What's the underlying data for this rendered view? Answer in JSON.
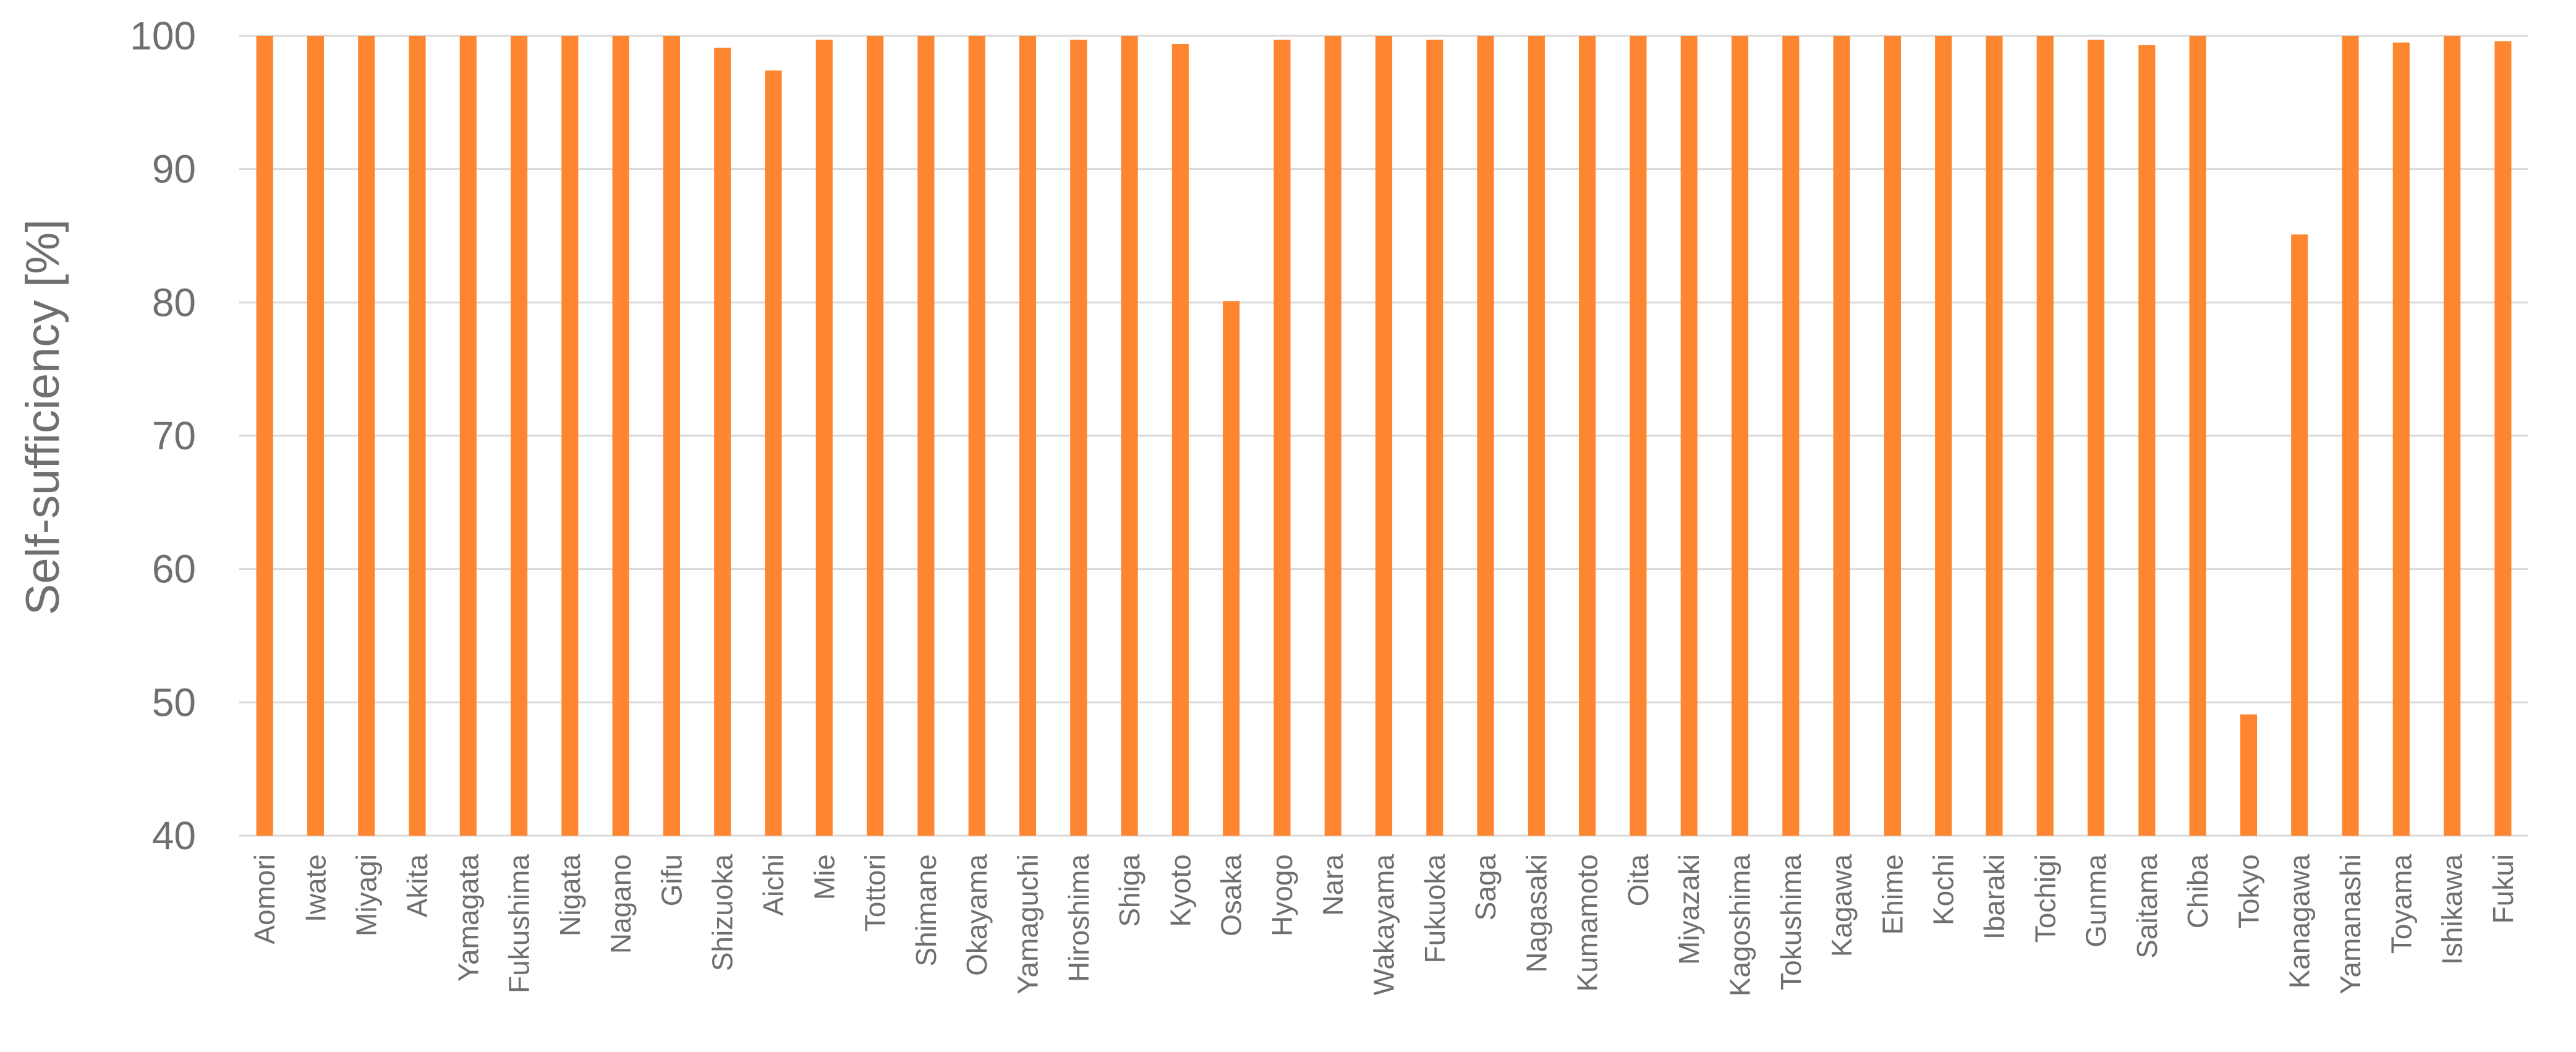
{
  "chart_data": {
    "type": "bar",
    "title": "",
    "xlabel": "",
    "ylabel": "Self-sufficiency [%]",
    "ylim": [
      40,
      100
    ],
    "yticks": [
      40,
      50,
      60,
      70,
      80,
      90,
      100
    ],
    "grid": true,
    "legend": "none",
    "bar_color": "#FF8630",
    "categories": [
      "Aomori",
      "Iwate",
      "Miyagi",
      "Akita",
      "Yamagata",
      "Fukushima",
      "Nigata",
      "Nagano",
      "Gifu",
      "Shizuoka",
      "Aichi",
      "Mie",
      "Tottori",
      "Shimane",
      "Okayama",
      "Yamaguchi",
      "Hiroshima",
      "Shiga",
      "Kyoto",
      "Osaka",
      "Hyogo",
      "Nara",
      "Wakayama",
      "Fukuoka",
      "Saga",
      "Nagasaki",
      "Kumamoto",
      "Oita",
      "Miyazaki",
      "Kagoshima",
      "Tokushima",
      "Kagawa",
      "Ehime",
      "Kochi",
      "Ibaraki",
      "Tochigi",
      "Gunma",
      "Saitama",
      "Chiba",
      "Tokyo",
      "Kanagawa",
      "Yamanashi",
      "Toyama",
      "Ishikawa",
      "Fukui"
    ],
    "values": [
      100,
      100,
      100,
      100,
      100,
      100,
      100,
      100,
      100,
      99.1,
      97.4,
      99.7,
      100,
      100,
      100,
      100,
      99.7,
      100,
      99.4,
      80.1,
      99.7,
      100,
      100,
      99.7,
      100,
      100,
      100,
      100,
      100,
      100,
      100,
      100,
      100,
      100,
      100,
      100,
      99.7,
      99.3,
      100,
      49.1,
      85.1,
      100,
      99.5,
      100,
      99.6
    ]
  }
}
